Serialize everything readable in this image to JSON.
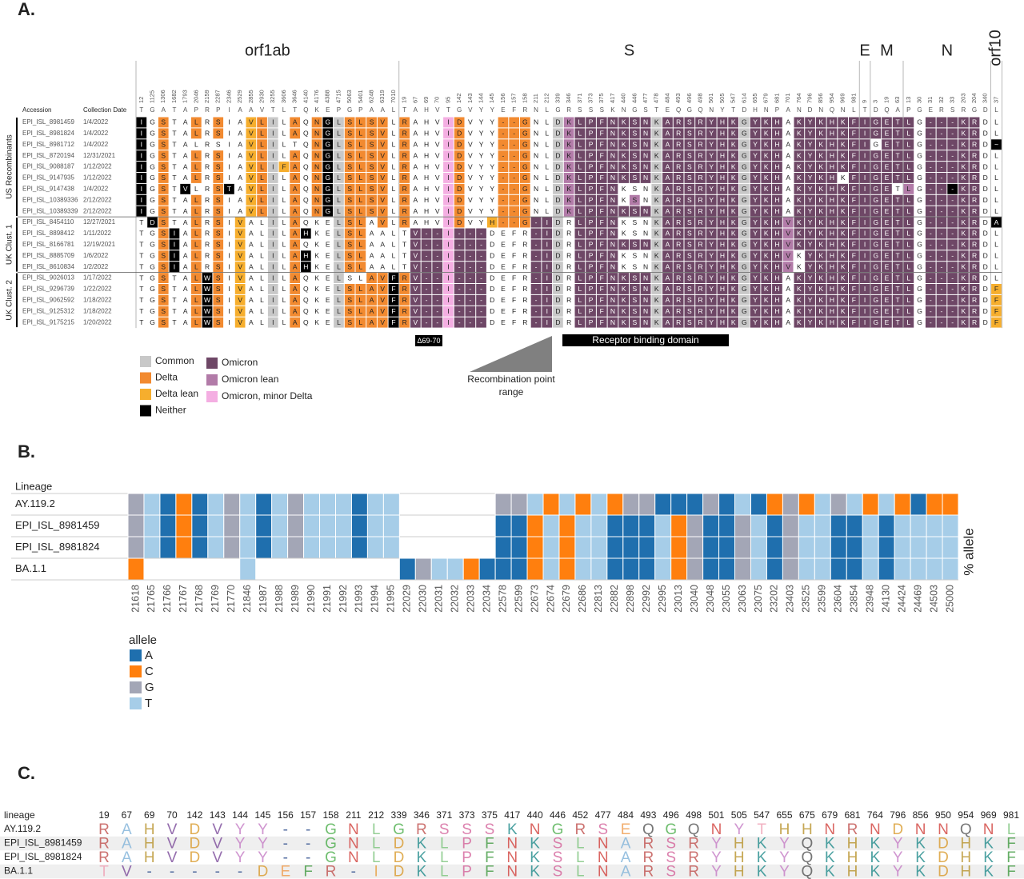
{
  "panel_a": {
    "label": "A.",
    "accession_header": "Accession",
    "date_header": "Collection Date",
    "genes": [
      {
        "name": "orf1ab",
        "positions": [
          12,
          1125,
          1306,
          1682,
          1793,
          2046,
          2159,
          2287,
          2346,
          2529,
          2855,
          2930,
          3255,
          3606,
          3646,
          4140,
          4176,
          4388,
          4715,
          5063,
          5401,
          6248,
          6319,
          7010
        ],
        "reference": "TGATAPRPIAAVTLTQKEPGPAAL"
      },
      {
        "name": "S",
        "positions": [
          19,
          67,
          69,
          70,
          95,
          142,
          143,
          144,
          145,
          156,
          157,
          158,
          211,
          212,
          339,
          346,
          371,
          373,
          375,
          417,
          440,
          446,
          477,
          478,
          484,
          493,
          496,
          498,
          501,
          505,
          547,
          614,
          655,
          679,
          681,
          701,
          764,
          796,
          856,
          954,
          969,
          981
        ],
        "reference": "TAHVTGVYYEFRNLGRSSSKNGSTEQGQNYTDHNPANDNQNL"
      },
      {
        "name": "E",
        "positions": [
          9
        ],
        "reference": "T"
      },
      {
        "name": "M",
        "positions": [
          3,
          19,
          63
        ],
        "reference": "DQA"
      },
      {
        "name": "N",
        "positions": [
          13,
          30,
          31,
          32,
          33,
          203,
          204,
          340
        ],
        "reference": "PGERSRGD"
      },
      {
        "name": "orf10",
        "positions": [
          37
        ],
        "reference": "L"
      }
    ],
    "groups": [
      {
        "name": "US Recombinants",
        "rows": [
          {
            "accession": "EPI_ISL_8981459",
            "date": "1/4/2022",
            "residues": [
              "IGSTALRSIAVLILAQNGLSLSVL",
              "RAHVIDVYY--GNLDKLPFNKSNKARSRYHKGYKHAKYKHKF",
              "I",
              "GET",
              "LG---KRD",
              "L"
            ],
            "classes": [
              "nwdwwdwdwwldcwdwdncddddw",
              "dwwwpdwwwdddwwcmooooooocooooooocooowoooooo",
              "o",
              "ooo",
              "owooooow",
              "w"
            ]
          },
          {
            "accession": "EPI_ISL_8981824",
            "date": "1/4/2022",
            "residues": [
              "IGSTALRSIAVLILAQNGLSLSVL",
              "RAHVIDVYY--GNLDKLPFNKSNKARSRYHKGYKHAKYKHKF",
              "I",
              "GET",
              "LG---KRD",
              "L"
            ],
            "classes": [
              "nwdwwdwdwwldcwdwdncddddw",
              "dwwwpdwwwdddwwcmooooooocooooooocooowoooooo",
              "o",
              "ooo",
              "owooooow",
              "w"
            ]
          },
          {
            "accession": "EPI_ISL_8981712",
            "date": "1/4/2022",
            "residues": [
              "IGSTALRSIAVLILTQNGLSLSVL",
              "RAHVIDVYY--GNLDKLPFNKSNKARSRYHKGYKHAKYKHKF",
              "I",
              "GET",
              "LG---KRD",
              "~"
            ],
            "classes": [
              "nwdwwwwwwwldcwwwdncddddw",
              "dwwwpdwwwdddwwcmooooooocooooooocooowoooooo",
              "o",
              "woo",
              "owooooow",
              "n"
            ]
          },
          {
            "accession": "EPI_ISL_8720194",
            "date": "12/31/2021",
            "residues": [
              "IGSTALRSIAVLILAQNGLSLSVL",
              "RAHVIDVYY--GNLDKLPFNKSNKARSRYHKGYKHAKYKHKF",
              "I",
              "GET",
              "LG---KRD",
              "L"
            ],
            "classes": [
              "nwdwwdwdwwldcwdwdncddddw",
              "dwwwpdwwwdddwwcmooooooocooooooocooowoooooo",
              "o",
              "ooo",
              "owooooow",
              "w"
            ]
          },
          {
            "accession": "EPI_ISL_9088187",
            "date": "1/12/2022",
            "residues": [
              "IGSTALRSIAVLIFAQNGLSLSVL",
              "RAHVIDVYY--GNLDKLPFNKSNKARSRYHKGYKHAKYKHKF",
              "I",
              "GET",
              "LG---KRD",
              "L"
            ],
            "classes": [
              "nwdwwdwdwwldcldwdncddddw",
              "dwwwpdwwwdddwwcmooooooocooooooocooowoooooo",
              "o",
              "ooo",
              "owooooow",
              "w"
            ]
          },
          {
            "accession": "EPI_ISL_9147935",
            "date": "1/12/2022",
            "residues": [
              "IGSTALRSIAVLILAQNGLSLSVL",
              "RAHVIDVYY--GNLDKLPFNKSNKARSRYHKGYKHAKYKHKF",
              "I",
              "GET",
              "LG---KRD",
              "L"
            ],
            "classes": [
              "nwdwwdwdwwldcwdwdncddddw",
              "dwwwpdwwwdddwwcmooooooocooooooocooowoooowo",
              "o",
              "ooo",
              "owooooow",
              "w"
            ]
          },
          {
            "accession": "EPI_ISL_9147438",
            "date": "1/4/2022",
            "residues": [
              "IGSTVLRSTAVLILAQNGLSLSVL",
              "RAHVIDVYY--GNLDKLPFNKSNKARSRYHKGYKHAKYKHKF",
              "I",
              "GET",
              "LG---KRD",
              "L"
            ],
            "classes": [
              "nwdwnwwdnwldcwdwdncddddw",
              "dwwwpdwwwdddwwcmoooowwwcooooooocooowoooooo",
              "o",
              "oow",
              "mwoonoow",
              "w"
            ]
          },
          {
            "accession": "EPI_ISL_10389336",
            "date": "2/12/2022",
            "residues": [
              "IGSTALRSIAVLILAQNGLSLSVL",
              "RAHVIDVYY--GNLDKLPFNKSNKARSRYHKGYKHAKYKHKF",
              "I",
              "GET",
              "LG---KRD",
              "L"
            ],
            "classes": [
              "nwdwwdwdwwldcwdwdncddddw",
              "dwwwpdwwwdddwwcmoooowmwcooooooocooowoooooo",
              "o",
              "ooo",
              "owooooow",
              "w"
            ]
          },
          {
            "accession": "EPI_ISL_10389339",
            "date": "2/12/2022",
            "residues": [
              "IGSTALRSIAVLILAQNGLSLSVL",
              "RAHVIDVYY--GNLDKLPFNKSNKARSRYHKGYKHAKYKHKF",
              "I",
              "GET",
              "LG---KRD",
              "L"
            ],
            "classes": [
              "nwdwwdwdwwldcwdwdncddddw",
              "dwwwpdwwwdddwwcmooooooocooooooocooowoooooo",
              "o",
              "ooo",
              "owooooow",
              "w"
            ]
          }
        ]
      },
      {
        "name": "UK Clust. 1",
        "rows": [
          {
            "accession": "EPI_ISL_8454110",
            "date": "12/27/2021",
            "residues": [
              "TDSTALRSIVALILAQKELSLAVL",
              "RAHVIDVYH--G-IDRLPFNKSNKARSRYHKGYKHVKYKHKF",
              "I",
              "GET",
              "LG---KRD",
              "A"
            ],
            "classes": [
              "wndwwdwdwlwwcwdwwwcddwdw",
              "dwwwpdwwldddoocwoooowwwcooooooocooomoooooo",
              "o",
              "ooo",
              "owooooow",
              "n"
            ]
          },
          {
            "accession": "EPI_ISL_8898412",
            "date": "1/11/2022",
            "residues": [
              "TGSIALRSIVALILAHKELSLAAL",
              "TV--I---DEFR-IDRLPFNKSNKARSRYHKGYKHVKYKHKF",
              "I",
              "GET",
              "LG---KRD",
              "L"
            ],
            "classes": [
              "wwdnwdwdwlwwcwdnwwcddwww",
              "wooopooowwwwoocwoooowwwcooooooocooomoooooo",
              "o",
              "ooo",
              "owooooow",
              "w"
            ]
          },
          {
            "accession": "EPI_ISL_8166781",
            "date": "12/19/2021",
            "residues": [
              "TGSIALRSIVALILAQKELSLAAL",
              "TV--I---DEFR-IDRLPFNKSNKARSRYHKGYKHVKYKHKF",
              "I",
              "GET",
              "LG---KRD",
              "L"
            ],
            "classes": [
              "wwdnwdwdwlwwcwdwwwcddwww",
              "wooopooowwwwoocwooooooocooooooocooomoooooo",
              "o",
              "ooo",
              "owooooow",
              "w"
            ]
          },
          {
            "accession": "EPI_ISL_8885709",
            "date": "1/6/2022",
            "residues": [
              "TGSIALRSIVALILAHKELSLAAL",
              "TV--I---DEFR-IDRLPFNKSNKARSRYHKGYKHVKYKHKF",
              "I",
              "GET",
              "LG---KRD",
              "L"
            ],
            "classes": [
              "wwdnwdwdwlwwcwdnwwcddwww",
              "wooopooowwwwoocwoooowwwcooooooocooomwooooo",
              "o",
              "ooo",
              "owooooow",
              "w"
            ]
          },
          {
            "accession": "EPI_ISL_8610834",
            "date": "1/2/2022",
            "residues": [
              "TGSIALRSIVALILAHKELSLAAL",
              "TV--I---DEFR-IDRLPFNKSNKARSRYHKGYKHVKYKHKF",
              "I",
              "GET",
              "LG---KRD",
              "L"
            ],
            "classes": [
              "wwdnwdwdwlwwcwdnwwcddwww",
              "wooopooowwwwoocwoooowwwcooooooocooomwooooo",
              "o",
              "ooo",
              "owooooow",
              "w"
            ]
          }
        ]
      },
      {
        "name": "UK Clust. 2",
        "rows": [
          {
            "accession": "EPI_ISL_9026013",
            "date": "1/17/2022",
            "residues": [
              "TGSTALWSIVALILAQKELSLAVF",
              "RV--I---DEFR-IDRLPFNKSNKARSRYHKGYKHAKYKHKF",
              "I",
              "GET",
              "LG---KRD",
              "L"
            ],
            "classes": [
              "wwdwwdndwlwwcwdwwwcwwddn",
              "dooopooowwwwoocwooooooocooooooocooowoooooo",
              "o",
              "ooo",
              "owooooow",
              "w"
            ]
          },
          {
            "accession": "EPI_ISL_9296739",
            "date": "1/22/2022",
            "residues": [
              "TGSTALWSIVALILAQKELSLAVF",
              "RV--I---DEFR-IDRLPFNKSNKARSRYHKGYKHAKYKHKF",
              "I",
              "GET",
              "LG---KRD",
              "F"
            ],
            "classes": [
              "wwdwwdndwlwwcwdwwwcddddn",
              "dooopooowwwwoocwooooooocooooooocooowoooooo",
              "o",
              "ooo",
              "owooooow",
              "l"
            ]
          },
          {
            "accession": "EPI_ISL_9062592",
            "date": "1/18/2022",
            "residues": [
              "TGSTALWSIVALILAQKELSLAVF",
              "RV--I---DEFR-IDRLPFNKSNKARSRYHKGYKHAKYKHKF",
              "I",
              "GET",
              "LG---KRD",
              "F"
            ],
            "classes": [
              "wwdwwdndwlwwcwdwwwcddddn",
              "dooopooowwwwoocwooooooocooooooocooowoooooo",
              "o",
              "ooo",
              "owooooow",
              "l"
            ]
          },
          {
            "accession": "EPI_ISL_9125312",
            "date": "1/18/2022",
            "residues": [
              "TGSTALWSIVALILAQKELSLAVF",
              "RV--I---DEFR-IDRLPFNKSNKARSRYHKGYKHAKYKHKF",
              "I",
              "GET",
              "LG---KRD",
              "F"
            ],
            "classes": [
              "wwdwwdndwlwwcwdwwwcddddn",
              "dooopooowwwwoocwooooooocooooooocooowoooooo",
              "o",
              "ooo",
              "owooooow",
              "l"
            ]
          },
          {
            "accession": "EPI_ISL_9175215",
            "date": "1/20/2022",
            "residues": [
              "TGSTALWSIVALILAQKELSLAVF",
              "RV--I---DEFR-IDRLPFNKSNKARSRYHKGYKHAKYKHKF",
              "I",
              "GET",
              "LG---KRD",
              "F"
            ],
            "classes": [
              "wwdwwdndwlwwcwdwwwcddddn",
              "dooopooowwwwoocwooooooocooooooocooowoooooo",
              "o",
              "ooo",
              "owooooow",
              "l"
            ]
          }
        ]
      }
    ],
    "legend": [
      {
        "name": "Common",
        "class": "c",
        "color": "#c8c8c8"
      },
      {
        "name": "Delta",
        "class": "d",
        "color": "#f28a30"
      },
      {
        "name": "Delta lean",
        "class": "l",
        "color": "#f6ae2d"
      },
      {
        "name": "Neither",
        "class": "n",
        "color": "#000000"
      },
      {
        "name": "Omicron",
        "class": "o",
        "color": "#6e4766"
      },
      {
        "name": "Omicron lean",
        "class": "m",
        "color": "#b27ba8"
      },
      {
        "name": "Omicron, minor Delta",
        "class": "p",
        "color": "#f4aee2"
      }
    ],
    "deletion_label": "Δ69-70",
    "recombination_label": "Recombination point range",
    "rbd_label": "Receptor binding domain"
  },
  "panel_b": {
    "label": "B.",
    "row_header": "Lineage",
    "y_label": "% allele",
    "legend_title": "allele",
    "lineages": [
      "AY.119.2",
      "EPI_ISL_8981459",
      "EPI_ISL_8981824",
      "BA.1.1"
    ],
    "positions": [
      21618,
      21765,
      21766,
      21767,
      21768,
      21769,
      21770,
      21846,
      21987,
      21988,
      21989,
      21990,
      21991,
      21992,
      21993,
      21994,
      21995,
      22029,
      22030,
      22031,
      22032,
      22033,
      22034,
      22578,
      22599,
      22673,
      22674,
      22679,
      22686,
      22813,
      22882,
      22898,
      22992,
      22995,
      23013,
      23040,
      23048,
      23055,
      23063,
      23075,
      23202,
      23403,
      23525,
      23599,
      23604,
      23854,
      23948,
      24130,
      24424,
      24469,
      24503,
      25000
    ],
    "alleles": [
      [
        "G",
        "T",
        "A",
        "C",
        "A",
        "T",
        "G",
        "T",
        "A",
        "T",
        "G",
        "T",
        "T",
        "T",
        "A",
        "T",
        "T",
        null,
        null,
        null,
        null,
        null,
        null,
        "G",
        "G",
        "T",
        "C",
        "T",
        "C",
        "T",
        "C",
        "G",
        "G",
        "A",
        "A",
        "A",
        "G",
        "A",
        "T",
        "A",
        "C",
        "G",
        "C",
        "T",
        "G",
        "T",
        "C",
        "T",
        "C",
        "A",
        "C",
        "C"
      ],
      [
        "G",
        "T",
        "A",
        "C",
        "A",
        "T",
        "G",
        "T",
        "A",
        "T",
        "G",
        "T",
        "T",
        "T",
        "A",
        "T",
        "T",
        null,
        null,
        null,
        null,
        null,
        null,
        "A",
        "A",
        "C",
        "T",
        "C",
        "T",
        "T",
        "A",
        "A",
        "A",
        "T",
        "C",
        "G",
        "A",
        "A",
        "G",
        "T",
        "A",
        "G",
        "T",
        "T",
        "A",
        "A",
        "T",
        "A",
        "T",
        "T",
        "T",
        "T"
      ],
      [
        "G",
        "T",
        "A",
        "C",
        "A",
        "T",
        "G",
        "T",
        "A",
        "T",
        "G",
        "T",
        "T",
        "T",
        "A",
        "T",
        "T",
        null,
        null,
        null,
        null,
        null,
        null,
        "A",
        "A",
        "C",
        "T",
        "C",
        "T",
        "T",
        "A",
        "A",
        "A",
        "T",
        "C",
        "G",
        "A",
        "A",
        "G",
        "T",
        "A",
        "G",
        "T",
        "T",
        "A",
        "A",
        "T",
        "A",
        "T",
        "T",
        "T",
        "T"
      ],
      [
        "C",
        null,
        null,
        null,
        null,
        null,
        null,
        "T",
        null,
        null,
        null,
        null,
        null,
        null,
        null,
        null,
        null,
        "A",
        "G",
        "T",
        "T",
        "C",
        "A",
        "A",
        "A",
        "C",
        "T",
        "C",
        "T",
        "T",
        "A",
        "A",
        "A",
        "T",
        "C",
        "G",
        "A",
        "A",
        "G",
        "T",
        "A",
        "G",
        "T",
        "T",
        "A",
        "A",
        "T",
        "A",
        "T",
        "T",
        "T",
        "T"
      ]
    ],
    "legend": [
      {
        "name": "A",
        "color": "#1f6fae"
      },
      {
        "name": "C",
        "color": "#ff7f0e"
      },
      {
        "name": "G",
        "color": "#a3a6b6"
      },
      {
        "name": "T",
        "color": "#a6cde8"
      }
    ]
  },
  "panel_c": {
    "label": "C.",
    "row_header": "lineage",
    "positions": [
      19,
      67,
      69,
      70,
      142,
      143,
      144,
      145,
      156,
      157,
      158,
      211,
      212,
      339,
      346,
      371,
      373,
      375,
      417,
      440,
      446,
      452,
      477,
      484,
      493,
      496,
      498,
      501,
      505,
      547,
      655,
      675,
      679,
      681,
      764,
      796,
      856,
      950,
      954,
      969,
      981
    ],
    "rows": [
      {
        "lineage": "AY.119.2",
        "residues": "RAHVDVYY--GNLGRSSSKNGRSEQGQNYTHHNRNDNNQNL"
      },
      {
        "lineage": "EPI_ISL_8981459",
        "residues": "RAHVDVYY--GNLDKLPFNKSLNARSRYHKYQKHKYKDHKF"
      },
      {
        "lineage": "EPI_ISL_8981824",
        "residues": "RAHVDVYY--GNLDKLPFNKSLNARSRYHKYQKHKYKDHKF"
      },
      {
        "lineage": "BA.1.1",
        "residues": "TV-----DEFR-IDKLPFNKSLNARSRYHKYQKHKYKDHKF"
      }
    ],
    "residue_colors": {
      "R": "#c0504d",
      "A": "#7fb2d9",
      "H": "#b8922a",
      "V": "#7b4a9a",
      "D": "#d99a2b",
      "Y": "#c57cc5",
      "G": "#4cae4c",
      "N": "#d2403c",
      "L": "#7cc47c",
      "S": "#d4629a",
      "K": "#1f8a8a",
      "E": "#f09a4a",
      "Q": "#555555",
      "T": "#f0a0b4",
      "F": "#3f9a3f",
      "P": "#d4629a",
      "I": "#e8a040",
      "-": "#2a4a8a"
    }
  }
}
